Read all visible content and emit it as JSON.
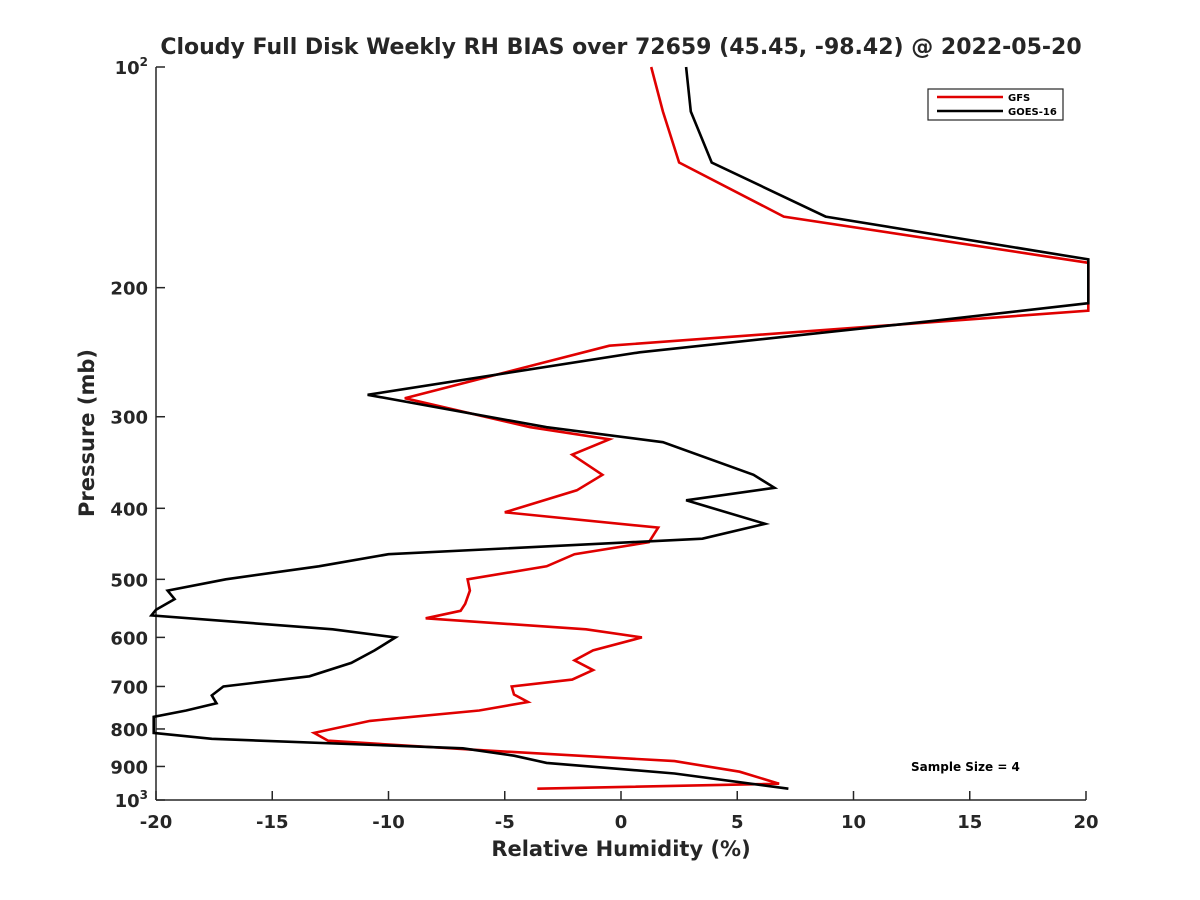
{
  "chart_data": {
    "type": "line",
    "title": "Cloudy Full Disk Weekly RH BIAS over 72659 (45.45, -98.42) @ 2022-05-20",
    "xlabel": "Relative Humidity (%)",
    "ylabel": "Pressure (mb)",
    "xlim": [
      -20,
      20
    ],
    "ylim": [
      100,
      1000
    ],
    "y_scale": "log",
    "y_reversed": true,
    "grid": false,
    "legend_position": "top-right",
    "x_ticks": [
      -20,
      -15,
      -10,
      -5,
      0,
      5,
      10,
      15,
      20
    ],
    "x_tick_labels": [
      "-20",
      "-15",
      "-10",
      "-5",
      "0",
      "5",
      "10",
      "15",
      "20"
    ],
    "y_ticks": [
      100,
      200,
      300,
      400,
      500,
      600,
      700,
      800,
      900,
      1000
    ],
    "y_tick_labels": [
      {
        "base": "10",
        "sup": "2"
      },
      {
        "base": "200",
        "sup": ""
      },
      {
        "base": "300",
        "sup": ""
      },
      {
        "base": "400",
        "sup": ""
      },
      {
        "base": "500",
        "sup": ""
      },
      {
        "base": "600",
        "sup": ""
      },
      {
        "base": "700",
        "sup": ""
      },
      {
        "base": "800",
        "sup": ""
      },
      {
        "base": "900",
        "sup": ""
      },
      {
        "base": "10",
        "sup": "3"
      }
    ],
    "annotation": "Sample Size = 4",
    "series": [
      {
        "name": "GFS",
        "color": "#e00000",
        "points": [
          [
            1.3,
            100
          ],
          [
            1.8,
            115
          ],
          [
            2.5,
            135
          ],
          [
            7,
            160
          ],
          [
            20.1,
            185
          ],
          [
            20.1,
            215
          ],
          [
            -0.5,
            240
          ],
          [
            -9.3,
            283
          ],
          [
            -3.9,
            310
          ],
          [
            -0.5,
            322
          ],
          [
            -2.1,
            338
          ],
          [
            -0.8,
            360
          ],
          [
            -1.9,
            378
          ],
          [
            -5,
            405
          ],
          [
            1.6,
            425
          ],
          [
            1.2,
            445
          ],
          [
            -2,
            462
          ],
          [
            -3.2,
            480
          ],
          [
            -6.6,
            500
          ],
          [
            -6.5,
            518
          ],
          [
            -6.7,
            540
          ],
          [
            -6.9,
            552
          ],
          [
            -8.4,
            565
          ],
          [
            -1.5,
            585
          ],
          [
            0.9,
            600
          ],
          [
            -1.2,
            625
          ],
          [
            -2,
            645
          ],
          [
            -1.2,
            665
          ],
          [
            -2.1,
            685
          ],
          [
            -4.7,
            700
          ],
          [
            -4.6,
            718
          ],
          [
            -4,
            735
          ],
          [
            -6.1,
            755
          ],
          [
            -10.8,
            780
          ],
          [
            -13.2,
            810
          ],
          [
            -12.6,
            830
          ],
          [
            -6.1,
            855
          ],
          [
            2.3,
            885
          ],
          [
            5.1,
            915
          ],
          [
            6.8,
            950
          ],
          [
            -3.6,
            965
          ]
        ]
      },
      {
        "name": "GOES-16",
        "color": "#000000",
        "points": [
          [
            2.8,
            100
          ],
          [
            3,
            115
          ],
          [
            3.9,
            135
          ],
          [
            8.8,
            160
          ],
          [
            20.1,
            183
          ],
          [
            20.1,
            210
          ],
          [
            13.4,
            222
          ],
          [
            0.8,
            245
          ],
          [
            -10.9,
            280
          ],
          [
            -3.2,
            310
          ],
          [
            1.8,
            325
          ],
          [
            5.7,
            360
          ],
          [
            6.6,
            375
          ],
          [
            2.8,
            390
          ],
          [
            6.2,
            420
          ],
          [
            3.5,
            440
          ],
          [
            -10,
            462
          ],
          [
            -13,
            480
          ],
          [
            -17,
            500
          ],
          [
            -19.5,
            518
          ],
          [
            -19.2,
            532
          ],
          [
            -20,
            550
          ],
          [
            -20.2,
            560
          ],
          [
            -12.4,
            585
          ],
          [
            -9.7,
            600
          ],
          [
            -10.6,
            625
          ],
          [
            -11.6,
            650
          ],
          [
            -13.4,
            678
          ],
          [
            -17.1,
            700
          ],
          [
            -17.6,
            720
          ],
          [
            -17.4,
            738
          ],
          [
            -18.7,
            755
          ],
          [
            -20.1,
            770
          ],
          [
            -20.1,
            810
          ],
          [
            -17.6,
            825
          ],
          [
            -6.8,
            850
          ],
          [
            -4.6,
            870
          ],
          [
            -3.2,
            890
          ],
          [
            2.3,
            920
          ],
          [
            7.2,
            965
          ]
        ]
      }
    ]
  }
}
